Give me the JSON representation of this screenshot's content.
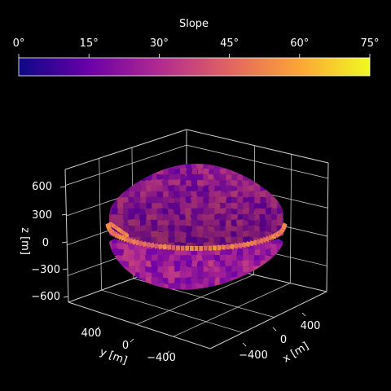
{
  "chart_data": {
    "type": "surface3d",
    "title": "",
    "colorbar": {
      "label": "Slope",
      "colormap": "plasma",
      "colors": [
        "#0d0887",
        "#6a00a8",
        "#b12a90",
        "#e16462",
        "#fca636",
        "#f0f921"
      ],
      "range": [
        0,
        75
      ],
      "ticks": [
        "0°",
        "15°",
        "30°",
        "45°",
        "60°",
        "75°"
      ],
      "placement": "top"
    },
    "axes": {
      "x": {
        "label": "x [m]",
        "ticks": [
          "−400",
          "0",
          "400"
        ],
        "range": [
          -600,
          600
        ]
      },
      "y": {
        "label": "y [m]",
        "ticks": [
          "400",
          "0",
          "−400"
        ],
        "range": [
          -600,
          600
        ]
      },
      "z": {
        "label": "z [m]",
        "ticks": [
          "600",
          "300",
          "0",
          "−300",
          "−600"
        ],
        "range": [
          -600,
          600
        ]
      }
    },
    "grid": true,
    "background": "#000000",
    "surface": {
      "shape": "asteroid",
      "equatorial_ridge": true,
      "equatorial_radius": 520,
      "polar_half_height": 440
    }
  }
}
